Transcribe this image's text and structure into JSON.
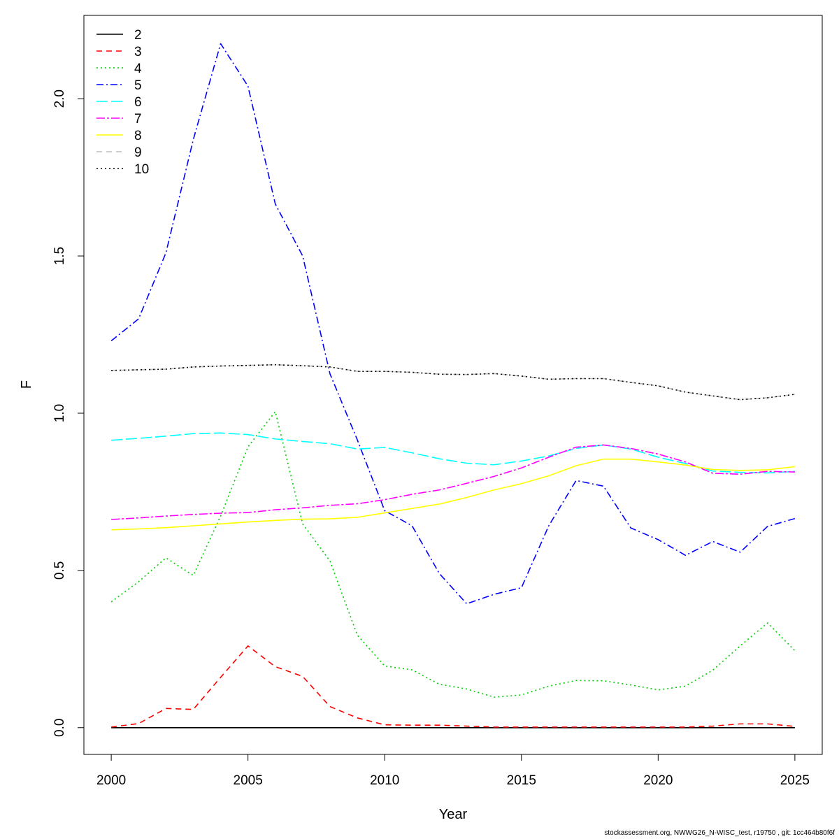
{
  "chart_data": {
    "type": "line",
    "xlabel": "Year",
    "ylabel": "F",
    "xlim": [
      1999,
      2026
    ],
    "ylim": [
      -0.085,
      2.265
    ],
    "x_ticks": [
      2000,
      2005,
      2010,
      2015,
      2020,
      2025
    ],
    "y_ticks": [
      0.0,
      0.5,
      1.0,
      1.5,
      2.0
    ],
    "y_tick_labels": [
      "0.0",
      "0.5",
      "1.0",
      "1.5",
      "2.0"
    ],
    "legend_position": "top-left",
    "x": [
      2000,
      2001,
      2002,
      2003,
      2004,
      2005,
      2006,
      2007,
      2008,
      2009,
      2010,
      2011,
      2012,
      2013,
      2014,
      2015,
      2016,
      2017,
      2018,
      2019,
      2020,
      2021,
      2022,
      2023,
      2024,
      2025
    ],
    "series": [
      {
        "name": "2",
        "color": "#000000",
        "dash": "",
        "values": [
          0,
          0,
          0,
          0,
          0,
          0,
          0,
          0,
          0,
          0,
          0,
          0,
          0,
          0,
          0,
          0,
          0,
          0,
          0,
          0,
          0,
          0,
          0,
          0,
          0,
          0
        ]
      },
      {
        "name": "3",
        "color": "#ff0000",
        "dash": "8,6",
        "values": [
          0.002,
          0.013,
          0.061,
          0.058,
          0.16,
          0.26,
          0.194,
          0.163,
          0.067,
          0.031,
          0.009,
          0.008,
          0.008,
          0.005,
          0.002,
          0.002,
          0.002,
          0.002,
          0.002,
          0.002,
          0.002,
          0.002,
          0.005,
          0.012,
          0.012,
          0.004
        ]
      },
      {
        "name": "4",
        "color": "#00cd00",
        "dash": "2,4",
        "values": [
          0.4,
          0.464,
          0.54,
          0.484,
          0.673,
          0.893,
          1.005,
          0.648,
          0.53,
          0.294,
          0.196,
          0.184,
          0.138,
          0.123,
          0.097,
          0.104,
          0.132,
          0.15,
          0.149,
          0.136,
          0.12,
          0.132,
          0.183,
          0.26,
          0.333,
          0.245
        ]
      },
      {
        "name": "5",
        "color": "#0000ff",
        "dash": "10,4,2,4",
        "values": [
          1.23,
          1.3,
          1.51,
          1.87,
          2.175,
          2.04,
          1.665,
          1.5,
          1.125,
          0.915,
          0.69,
          0.642,
          0.49,
          0.394,
          0.424,
          0.445,
          0.642,
          0.786,
          0.768,
          0.635,
          0.598,
          0.548,
          0.592,
          0.558,
          0.64,
          0.665
        ]
      },
      {
        "name": "6",
        "color": "#00ffff",
        "dash": "16,5",
        "values": [
          0.914,
          0.92,
          0.927,
          0.935,
          0.937,
          0.932,
          0.918,
          0.91,
          0.903,
          0.886,
          0.891,
          0.874,
          0.855,
          0.841,
          0.836,
          0.848,
          0.864,
          0.888,
          0.899,
          0.886,
          0.86,
          0.84,
          0.816,
          0.812,
          0.81,
          0.815
        ]
      },
      {
        "name": "7",
        "color": "#ff00ff",
        "dash": "12,3,3,3",
        "values": [
          0.662,
          0.667,
          0.673,
          0.678,
          0.682,
          0.684,
          0.693,
          0.699,
          0.707,
          0.712,
          0.725,
          0.742,
          0.756,
          0.777,
          0.799,
          0.826,
          0.86,
          0.892,
          0.899,
          0.888,
          0.87,
          0.845,
          0.809,
          0.806,
          0.815,
          0.813
        ]
      },
      {
        "name": "8",
        "color": "#ffff00",
        "dash": "",
        "values": [
          0.629,
          0.632,
          0.636,
          0.642,
          0.648,
          0.654,
          0.659,
          0.663,
          0.664,
          0.669,
          0.683,
          0.697,
          0.711,
          0.732,
          0.756,
          0.776,
          0.801,
          0.833,
          0.854,
          0.854,
          0.845,
          0.835,
          0.821,
          0.818,
          0.82,
          0.83
        ]
      },
      {
        "name": "9",
        "color": "#bebebe",
        "dash": "8,6",
        "values": [
          1.136,
          1.138,
          1.14,
          1.147,
          1.15,
          1.152,
          1.154,
          1.151,
          1.147,
          1.133,
          1.133,
          1.13,
          1.124,
          1.123,
          1.126,
          1.118,
          1.108,
          1.11,
          1.11,
          1.098,
          1.087,
          1.067,
          1.055,
          1.043,
          1.049,
          1.06
        ]
      },
      {
        "name": "10",
        "color": "#000000",
        "dash": "2,4",
        "values": [
          1.136,
          1.138,
          1.14,
          1.147,
          1.15,
          1.152,
          1.154,
          1.151,
          1.147,
          1.133,
          1.133,
          1.13,
          1.124,
          1.123,
          1.126,
          1.118,
          1.108,
          1.11,
          1.11,
          1.098,
          1.087,
          1.067,
          1.055,
          1.043,
          1.049,
          1.06
        ]
      }
    ]
  },
  "footnote": "stockassessment.org, NWWG26_N-WISC_test, r19750 , git: 1cc464b80f6f"
}
